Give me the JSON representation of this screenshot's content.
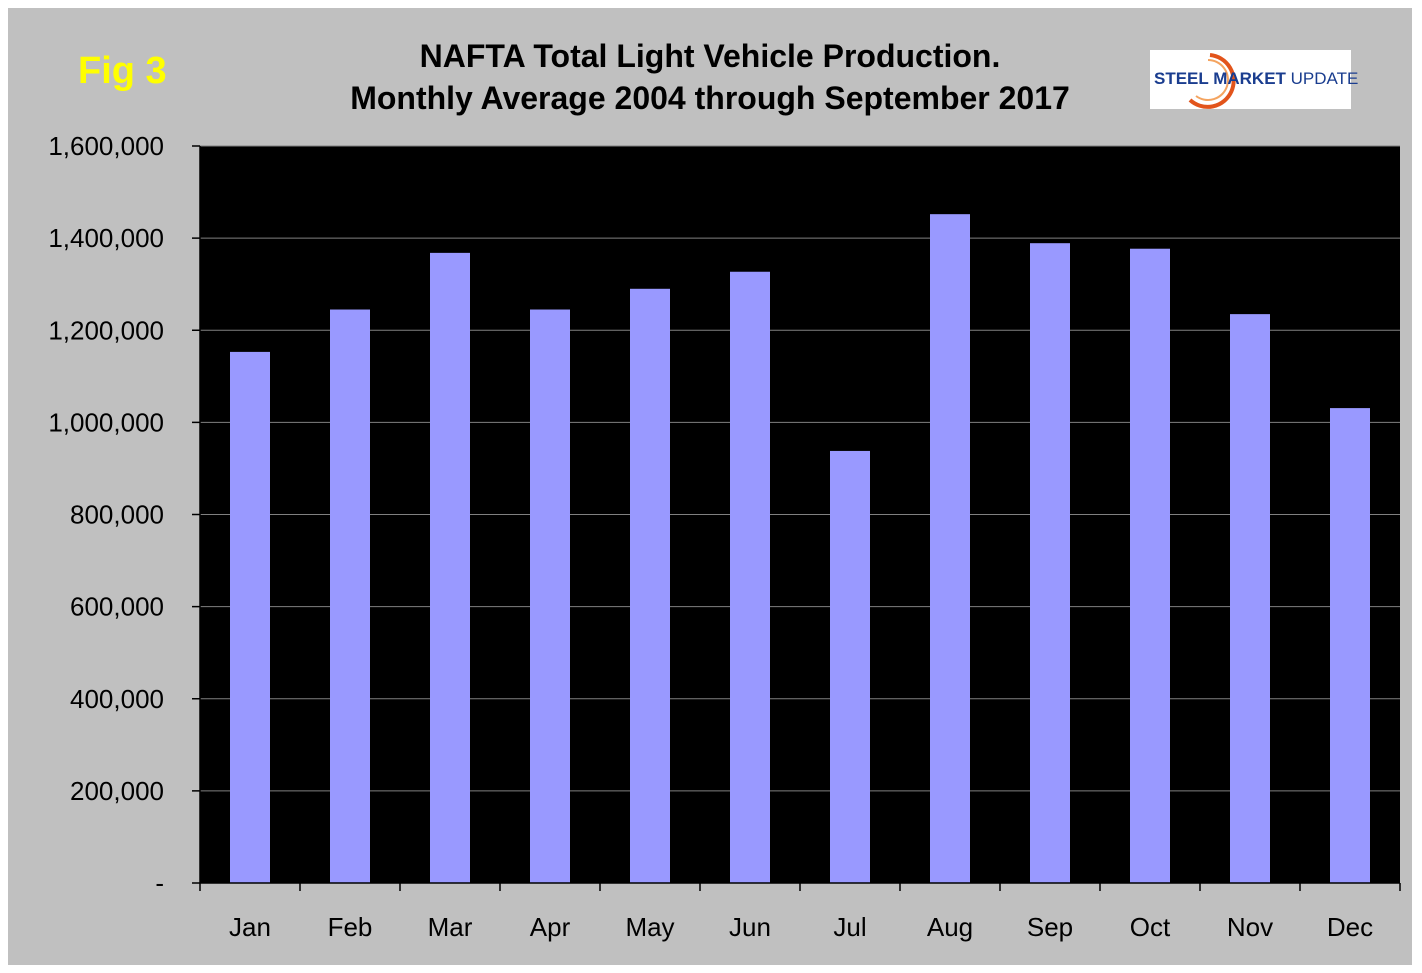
{
  "figure_label": "Fig 3",
  "logo": {
    "strong": "STEEL MARKET",
    "light": " UPDATE"
  },
  "colors": {
    "background": "#c0c0c0",
    "plot_area": "#000000",
    "bar": "#9999ff",
    "gridline": "#808080",
    "figure_label": "#ffff00",
    "logo_arc": "#e2541b"
  },
  "chart_data": {
    "type": "bar",
    "title": "NAFTA Total Light Vehicle Production.",
    "subtitle": "Monthly Average 2004 through September 2017",
    "xlabel": "",
    "ylabel": "",
    "categories": [
      "Jan",
      "Feb",
      "Mar",
      "Apr",
      "May",
      "Jun",
      "Jul",
      "Aug",
      "Sep",
      "Oct",
      "Nov",
      "Dec"
    ],
    "values": [
      1153000,
      1245000,
      1368000,
      1245000,
      1290000,
      1327000,
      938000,
      1452000,
      1389000,
      1377000,
      1235000,
      1031000
    ],
    "ylim": [
      0,
      1600000
    ],
    "y_ticks": [
      0,
      200000,
      400000,
      600000,
      800000,
      1000000,
      1200000,
      1400000,
      1600000
    ],
    "y_tick_labels": [
      "-",
      "200,000",
      "400,000",
      "600,000",
      "800,000",
      "1,000,000",
      "1,200,000",
      "1,400,000",
      "1,600,000"
    ],
    "grid": true,
    "legend": "none"
  }
}
